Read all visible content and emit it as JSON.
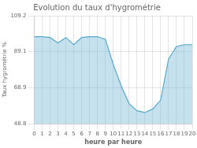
{
  "chart_data": {
    "type": "area",
    "title": "Evolution du taux d'hygrométrie",
    "x_label": "heure par heure",
    "y_label": "Taux hygrométrie %",
    "x": [
      0,
      1,
      2,
      3,
      4,
      5,
      6,
      7,
      8,
      9,
      10,
      11,
      12,
      13,
      14,
      15,
      16,
      17,
      18,
      19,
      20
    ],
    "values": [
      97.5,
      97.5,
      97.0,
      94.0,
      97.0,
      93.0,
      97.0,
      97.5,
      97.5,
      96.0,
      82.0,
      70.0,
      60.0,
      56.0,
      55.0,
      57.0,
      62.0,
      85.0,
      92.0,
      93.0,
      93.0
    ],
    "color": "#55aacc",
    "xlim": [
      0,
      20
    ],
    "xticks": [
      0,
      1,
      2,
      3,
      4,
      5,
      6,
      7,
      8,
      9,
      10,
      11,
      12,
      13,
      14,
      15,
      16,
      17,
      18,
      19,
      20
    ],
    "ylim": [
      48.8,
      109.2
    ],
    "yticks": [
      48.8,
      68.9,
      89.1,
      109.2
    ],
    "grid": true
  }
}
